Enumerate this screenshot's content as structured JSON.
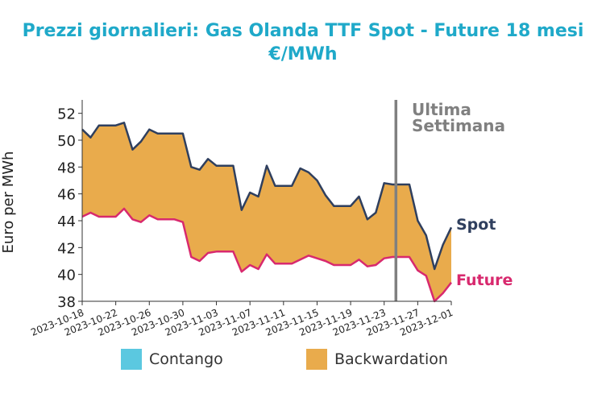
{
  "chart_data": {
    "type": "area",
    "title": "Prezzi giornalieri: Gas Olanda TTF Spot - Future 18 mesi",
    "subtitle": "€/MWh",
    "xlabel": "",
    "ylabel": "Euro per MWh",
    "ylim": [
      38,
      53
    ],
    "yticks": [
      38,
      40,
      42,
      44,
      46,
      48,
      50,
      52
    ],
    "xlim": [
      "2023-10-18",
      "2023-12-01"
    ],
    "xticks": [
      "2023-10-18",
      "2023-10-22",
      "2023-10-26",
      "2023-10-30",
      "2023-11-03",
      "2023-11-07",
      "2023-11-11",
      "2023-11-15",
      "2023-11-19",
      "2023-11-23",
      "2023-11-27",
      "2023-12-01"
    ],
    "x": [
      "2023-10-18",
      "2023-10-19",
      "2023-10-20",
      "2023-10-21",
      "2023-10-22",
      "2023-10-23",
      "2023-10-24",
      "2023-10-25",
      "2023-10-26",
      "2023-10-27",
      "2023-10-28",
      "2023-10-29",
      "2023-10-30",
      "2023-10-31",
      "2023-11-01",
      "2023-11-02",
      "2023-11-03",
      "2023-11-04",
      "2023-11-05",
      "2023-11-06",
      "2023-11-07",
      "2023-11-08",
      "2023-11-09",
      "2023-11-10",
      "2023-11-11",
      "2023-11-12",
      "2023-11-13",
      "2023-11-14",
      "2023-11-15",
      "2023-11-16",
      "2023-11-17",
      "2023-11-18",
      "2023-11-19",
      "2023-11-20",
      "2023-11-21",
      "2023-11-22",
      "2023-11-23",
      "2023-11-24",
      "2023-11-25",
      "2023-11-26",
      "2023-11-27",
      "2023-11-28",
      "2023-11-29",
      "2023-11-30",
      "2023-12-01"
    ],
    "series": [
      {
        "name": "Spot",
        "color": "#2f3f5e",
        "values": [
          50.8,
          50.2,
          51.1,
          51.1,
          51.1,
          51.3,
          49.3,
          49.9,
          50.8,
          50.5,
          50.5,
          50.5,
          50.5,
          48.0,
          47.8,
          48.6,
          48.1,
          48.1,
          48.1,
          44.8,
          46.1,
          45.8,
          48.1,
          46.6,
          46.6,
          46.6,
          47.9,
          47.6,
          47.0,
          45.9,
          45.1,
          45.1,
          45.1,
          45.8,
          44.1,
          44.6,
          46.8,
          46.7,
          46.7,
          46.7,
          44.0,
          42.9,
          40.4,
          42.2,
          43.5
        ]
      },
      {
        "name": "Future",
        "color": "#d8296e",
        "values": [
          44.3,
          44.6,
          44.3,
          44.3,
          44.3,
          44.9,
          44.1,
          43.9,
          44.4,
          44.1,
          44.1,
          44.1,
          43.9,
          41.3,
          41.0,
          41.6,
          41.7,
          41.7,
          41.7,
          40.2,
          40.7,
          40.4,
          41.5,
          40.8,
          40.8,
          40.8,
          41.1,
          41.4,
          41.2,
          41.0,
          40.7,
          40.7,
          40.7,
          41.1,
          40.6,
          40.7,
          41.2,
          41.3,
          41.3,
          41.3,
          40.3,
          39.9,
          38.0,
          38.6,
          39.4
        ]
      }
    ],
    "fill_between": {
      "Contango": "#5bc8e0",
      "Backwardation": "#e9ab4c"
    },
    "legend": [
      "Contango",
      "Backwardation"
    ],
    "legend_position": "bottom",
    "annotation": {
      "label_line1": "Ultima",
      "label_line2": "Settimana",
      "x": "2023-11-24",
      "color": "#808080"
    },
    "grid": false
  }
}
